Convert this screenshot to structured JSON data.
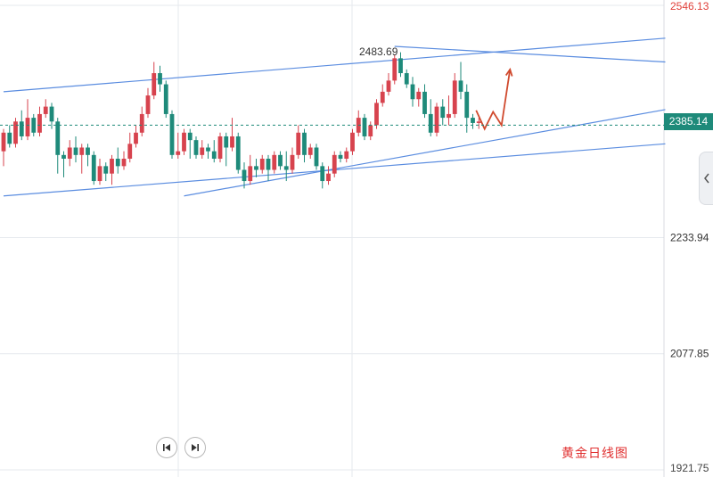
{
  "chart_data": {
    "type": "candlestick",
    "caption": "黄金日线图",
    "y_axis": {
      "labels": [
        "2546.13",
        "2233.94",
        "2077.85",
        "1921.75"
      ],
      "min": 1921.75,
      "max": 2546.13
    },
    "current_price": "2385.14",
    "annotations": [
      {
        "label": "2483.69",
        "value": 2483.69
      }
    ],
    "candles": [
      [
        2350,
        2375,
        2330,
        2380
      ],
      [
        2375,
        2360,
        2355,
        2385
      ],
      [
        2360,
        2390,
        2355,
        2395
      ],
      [
        2390,
        2370,
        2365,
        2405
      ],
      [
        2370,
        2395,
        2365,
        2420
      ],
      [
        2395,
        2375,
        2370,
        2400
      ],
      [
        2375,
        2400,
        2370,
        2410
      ],
      [
        2400,
        2410,
        2395,
        2420
      ],
      [
        2410,
        2390,
        2380,
        2415
      ],
      [
        2390,
        2345,
        2320,
        2395
      ],
      [
        2345,
        2340,
        2315,
        2350
      ],
      [
        2340,
        2355,
        2330,
        2365
      ],
      [
        2355,
        2345,
        2335,
        2370
      ],
      [
        2345,
        2355,
        2320,
        2360
      ],
      [
        2355,
        2345,
        2330,
        2360
      ],
      [
        2345,
        2310,
        2305,
        2350
      ],
      [
        2310,
        2330,
        2305,
        2340
      ],
      [
        2330,
        2320,
        2310,
        2335
      ],
      [
        2320,
        2340,
        2305,
        2345
      ],
      [
        2340,
        2330,
        2320,
        2355
      ],
      [
        2330,
        2340,
        2325,
        2350
      ],
      [
        2340,
        2360,
        2335,
        2375
      ],
      [
        2360,
        2375,
        2355,
        2385
      ],
      [
        2375,
        2400,
        2370,
        2410
      ],
      [
        2400,
        2425,
        2395,
        2435
      ],
      [
        2425,
        2455,
        2420,
        2470
      ],
      [
        2455,
        2440,
        2430,
        2465
      ],
      [
        2440,
        2400,
        2395,
        2445
      ],
      [
        2400,
        2345,
        2340,
        2405
      ],
      [
        2345,
        2350,
        2340,
        2375
      ],
      [
        2350,
        2375,
        2345,
        2380
      ],
      [
        2375,
        2365,
        2340,
        2380
      ],
      [
        2365,
        2345,
        2340,
        2370
      ],
      [
        2345,
        2355,
        2340,
        2365
      ],
      [
        2355,
        2350,
        2340,
        2360
      ],
      [
        2350,
        2340,
        2335,
        2365
      ],
      [
        2340,
        2370,
        2335,
        2375
      ],
      [
        2370,
        2355,
        2330,
        2375
      ],
      [
        2355,
        2370,
        2350,
        2395
      ],
      [
        2370,
        2325,
        2320,
        2375
      ],
      [
        2325,
        2310,
        2300,
        2335
      ],
      [
        2310,
        2330,
        2305,
        2345
      ],
      [
        2330,
        2325,
        2315,
        2340
      ],
      [
        2325,
        2340,
        2320,
        2345
      ],
      [
        2340,
        2325,
        2310,
        2345
      ],
      [
        2325,
        2345,
        2320,
        2350
      ],
      [
        2345,
        2330,
        2325,
        2350
      ],
      [
        2330,
        2325,
        2310,
        2350
      ],
      [
        2325,
        2345,
        2320,
        2355
      ],
      [
        2345,
        2375,
        2340,
        2385
      ],
      [
        2375,
        2345,
        2335,
        2380
      ],
      [
        2345,
        2355,
        2340,
        2360
      ],
      [
        2355,
        2330,
        2325,
        2360
      ],
      [
        2330,
        2310,
        2300,
        2335
      ],
      [
        2310,
        2320,
        2305,
        2330
      ],
      [
        2320,
        2345,
        2315,
        2350
      ],
      [
        2345,
        2340,
        2335,
        2350
      ],
      [
        2340,
        2350,
        2335,
        2355
      ],
      [
        2350,
        2375,
        2345,
        2380
      ],
      [
        2375,
        2395,
        2370,
        2405
      ],
      [
        2395,
        2370,
        2365,
        2400
      ],
      [
        2370,
        2385,
        2365,
        2390
      ],
      [
        2385,
        2415,
        2380,
        2420
      ],
      [
        2415,
        2430,
        2410,
        2440
      ],
      [
        2430,
        2445,
        2425,
        2455
      ],
      [
        2445,
        2475,
        2440,
        2480
      ],
      [
        2475,
        2455,
        2450,
        2483
      ],
      [
        2455,
        2440,
        2435,
        2460
      ],
      [
        2440,
        2420,
        2410,
        2450
      ],
      [
        2420,
        2430,
        2410,
        2435
      ],
      [
        2430,
        2400,
        2395,
        2440
      ],
      [
        2400,
        2375,
        2370,
        2420
      ],
      [
        2375,
        2410,
        2370,
        2415
      ],
      [
        2410,
        2395,
        2385,
        2420
      ],
      [
        2395,
        2400,
        2385,
        2425
      ],
      [
        2400,
        2445,
        2395,
        2455
      ],
      [
        2445,
        2430,
        2420,
        2470
      ],
      [
        2430,
        2395,
        2375,
        2440
      ],
      [
        2395,
        2388,
        2380,
        2400
      ],
      [
        2388,
        2390,
        2380,
        2395
      ]
    ],
    "projection": [
      2405,
      2380,
      2403,
      2385,
      2460
    ],
    "trendlines": [
      {
        "name": "upper-channel",
        "from": {
          "i": 0,
          "v": 2430
        },
        "to": {
          "i": 110,
          "v": 2502
        }
      },
      {
        "name": "lower-channel",
        "from": {
          "i": 0,
          "v": 2290
        },
        "to": {
          "i": 110,
          "v": 2360
        }
      },
      {
        "name": "rising-support",
        "from": {
          "i": 30,
          "v": 2290
        },
        "to": {
          "i": 110,
          "v": 2406
        }
      },
      {
        "name": "descending-resistance",
        "from": {
          "i": 65,
          "v": 2491
        },
        "to": {
          "i": 110,
          "v": 2470
        }
      }
    ]
  },
  "colors": {
    "up": "#d7434e",
    "down": "#1e8a7a",
    "trend": "#5b8de0",
    "projection": "#d04a2e",
    "grid": "#e6e9ee",
    "price_line": "#1e8a7a"
  },
  "controls": {
    "prev_icon": "skip-back-icon",
    "next_icon": "skip-forward-icon",
    "side_icon": "chevron-left-icon"
  }
}
